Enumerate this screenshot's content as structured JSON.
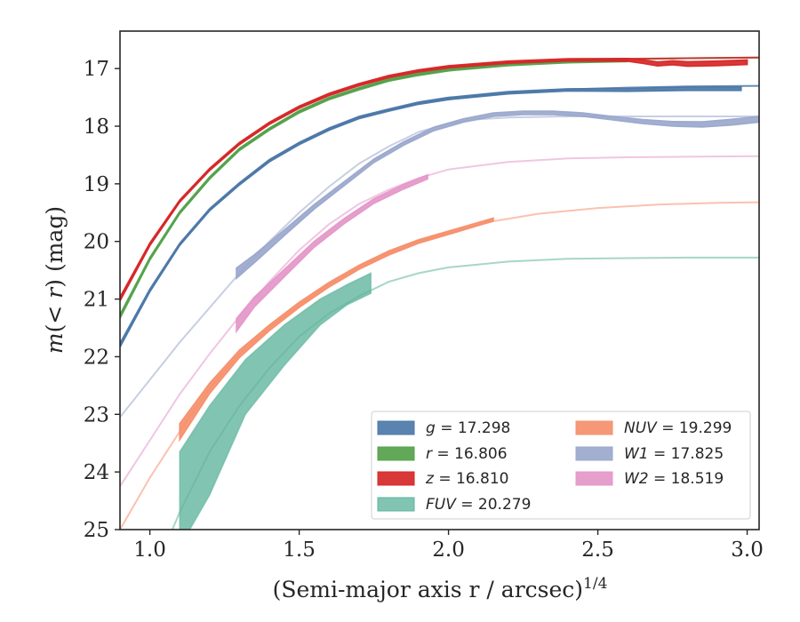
{
  "chart_data": {
    "type": "line",
    "xlabel": "(Semi-major axis r / arcsec)",
    "xlabel_exponent": "1/4",
    "ylabel": "m(< r) (mag)",
    "xlim": [
      0.9,
      3.04
    ],
    "ylim": [
      25.0,
      16.35
    ],
    "y_inverted": true,
    "x_ticks": [
      1.0,
      1.5,
      2.0,
      2.5,
      3.0
    ],
    "x_tick_labels": [
      "1.0",
      "1.5",
      "2.0",
      "2.5",
      "3.0"
    ],
    "y_ticks": [
      17,
      18,
      19,
      20,
      21,
      22,
      23,
      24,
      25
    ],
    "y_tick_labels": [
      "17",
      "18",
      "19",
      "20",
      "21",
      "22",
      "23",
      "24",
      "25"
    ],
    "legend_position": "lower-right",
    "series": [
      {
        "band": "g",
        "label_math": "g = 17.298",
        "color": "#4c78a8",
        "total_mag": 17.298,
        "model_x": [
          0.9,
          1.0,
          1.1,
          1.2,
          1.3,
          1.4,
          1.5,
          1.6,
          1.7,
          1.8,
          1.9,
          2.0,
          2.2,
          2.4,
          2.6,
          2.8,
          3.04
        ],
        "model_y": [
          21.8,
          20.85,
          20.05,
          19.45,
          19.0,
          18.6,
          18.3,
          18.05,
          17.85,
          17.72,
          17.6,
          17.52,
          17.42,
          17.36,
          17.33,
          17.31,
          17.3
        ],
        "data_x": [
          0.9,
          1.0,
          1.1,
          1.2,
          1.3,
          1.4,
          1.5,
          1.6,
          1.7,
          1.8,
          1.9,
          2.0,
          2.2,
          2.4,
          2.6,
          2.8,
          2.98
        ],
        "data_y": [
          21.8,
          20.85,
          20.05,
          19.45,
          19.0,
          18.6,
          18.3,
          18.05,
          17.85,
          17.72,
          17.6,
          17.52,
          17.42,
          17.37,
          17.37,
          17.35,
          17.35
        ],
        "data_width": [
          0.07,
          0.05,
          0.04,
          0.04,
          0.04,
          0.04,
          0.04,
          0.04,
          0.04,
          0.04,
          0.04,
          0.04,
          0.04,
          0.04,
          0.05,
          0.06,
          0.06
        ]
      },
      {
        "band": "r",
        "label_math": "r = 16.806",
        "color": "#54a24b",
        "total_mag": 16.806,
        "model_x": [
          0.9,
          1.0,
          1.1,
          1.2,
          1.3,
          1.4,
          1.5,
          1.6,
          1.7,
          1.8,
          1.9,
          2.0,
          2.2,
          2.4,
          2.6,
          2.8,
          3.04
        ],
        "model_y": [
          21.3,
          20.3,
          19.5,
          18.9,
          18.4,
          18.05,
          17.75,
          17.52,
          17.35,
          17.2,
          17.1,
          17.02,
          16.93,
          16.87,
          16.84,
          16.82,
          16.81
        ],
        "data_x": [
          0.9,
          1.0,
          1.1,
          1.2,
          1.3,
          1.4,
          1.5,
          1.6,
          1.7,
          1.8,
          1.9,
          2.0,
          2.2,
          2.4,
          2.6
        ],
        "data_y": [
          21.3,
          20.3,
          19.5,
          18.9,
          18.4,
          18.05,
          17.75,
          17.52,
          17.35,
          17.2,
          17.1,
          17.02,
          16.93,
          16.88,
          16.86
        ],
        "data_width": [
          0.07,
          0.05,
          0.04,
          0.04,
          0.04,
          0.04,
          0.04,
          0.04,
          0.04,
          0.04,
          0.04,
          0.04,
          0.04,
          0.04,
          0.04
        ]
      },
      {
        "band": "z",
        "label_math": "z = 16.810",
        "color": "#d62728",
        "total_mag": 16.81,
        "model_x": [
          0.9,
          1.0,
          1.1,
          1.2,
          1.3,
          1.4,
          1.5,
          1.6,
          1.7,
          1.8,
          1.9,
          2.0,
          2.2,
          2.4,
          2.6,
          2.8,
          3.04
        ],
        "model_y": [
          21.0,
          20.05,
          19.3,
          18.75,
          18.3,
          17.95,
          17.67,
          17.45,
          17.28,
          17.14,
          17.04,
          16.97,
          16.89,
          16.85,
          16.83,
          16.82,
          16.81
        ],
        "data_x": [
          0.9,
          1.0,
          1.1,
          1.2,
          1.3,
          1.4,
          1.5,
          1.6,
          1.7,
          1.8,
          1.9,
          2.0,
          2.2,
          2.4,
          2.6,
          2.65,
          2.7,
          2.75,
          2.8,
          2.9,
          3.0
        ],
        "data_y": [
          21.0,
          20.05,
          19.3,
          18.75,
          18.3,
          17.95,
          17.67,
          17.45,
          17.28,
          17.14,
          17.04,
          16.97,
          16.89,
          16.85,
          16.85,
          16.88,
          16.92,
          16.9,
          16.92,
          16.91,
          16.89
        ],
        "data_width": [
          0.07,
          0.05,
          0.04,
          0.04,
          0.04,
          0.04,
          0.04,
          0.04,
          0.04,
          0.04,
          0.04,
          0.04,
          0.04,
          0.04,
          0.05,
          0.06,
          0.07,
          0.07,
          0.08,
          0.08,
          0.08
        ]
      },
      {
        "band": "FUV",
        "label_math": "FUV = 20.279",
        "color": "#5fb49c",
        "total_mag": 20.279,
        "model_x": [
          1.05,
          1.1,
          1.2,
          1.3,
          1.4,
          1.5,
          1.6,
          1.7,
          1.8,
          1.9,
          2.0,
          2.2,
          2.4,
          2.6,
          2.8,
          3.04
        ],
        "model_y": [
          25.3,
          24.7,
          23.65,
          22.85,
          22.2,
          21.65,
          21.25,
          20.95,
          20.7,
          20.55,
          20.45,
          20.35,
          20.3,
          20.29,
          20.28,
          20.28
        ],
        "data_x": [
          1.1,
          1.2,
          1.32,
          1.45,
          1.57,
          1.66,
          1.74
        ],
        "data_lo": [
          25.3,
          24.4,
          23.0,
          22.15,
          21.45,
          21.1,
          20.9
        ],
        "data_hi": [
          23.65,
          22.85,
          22.05,
          21.45,
          21.0,
          20.75,
          20.55
        ]
      },
      {
        "band": "NUV",
        "label_math": "NUV = 19.299",
        "color": "#f58f6b",
        "total_mag": 19.299,
        "model_x": [
          0.9,
          1.0,
          1.1,
          1.2,
          1.3,
          1.4,
          1.5,
          1.6,
          1.7,
          1.8,
          1.9,
          2.0,
          2.15,
          2.3,
          2.5,
          2.7,
          2.9,
          3.04
        ],
        "model_y": [
          25.0,
          24.1,
          23.3,
          22.55,
          21.95,
          21.5,
          21.1,
          20.75,
          20.45,
          20.2,
          20.0,
          19.85,
          19.65,
          19.52,
          19.42,
          19.36,
          19.33,
          19.32
        ],
        "data_x": [
          1.1,
          1.2,
          1.3,
          1.4,
          1.5,
          1.6,
          1.7,
          1.8,
          1.9,
          2.0,
          2.15
        ],
        "data_y": [
          23.3,
          22.55,
          21.95,
          21.5,
          21.1,
          20.75,
          20.45,
          20.2,
          20.0,
          19.85,
          19.62
        ],
        "data_width": [
          0.28,
          0.18,
          0.13,
          0.1,
          0.09,
          0.08,
          0.07,
          0.07,
          0.06,
          0.06,
          0.05
        ]
      },
      {
        "band": "W1",
        "label_math": "W1 = 17.825",
        "color": "#9aa8cc",
        "total_mag": 17.825,
        "model_x": [
          0.9,
          1.0,
          1.1,
          1.2,
          1.3,
          1.4,
          1.5,
          1.6,
          1.7,
          1.8,
          1.9,
          2.0,
          2.1,
          2.2,
          2.4,
          2.6,
          2.8,
          3.04
        ],
        "model_y": [
          23.05,
          22.4,
          21.75,
          21.15,
          20.55,
          20.0,
          19.5,
          19.05,
          18.65,
          18.35,
          18.1,
          17.95,
          17.88,
          17.85,
          17.83,
          17.83,
          17.83,
          17.83
        ],
        "data_x": [
          1.29,
          1.35,
          1.45,
          1.55,
          1.65,
          1.75,
          1.85,
          1.95,
          2.05,
          2.15,
          2.25,
          2.35,
          2.45,
          2.55,
          2.65,
          2.75,
          2.85,
          2.95,
          3.04
        ],
        "data_y": [
          20.55,
          20.3,
          19.85,
          19.4,
          19.0,
          18.6,
          18.3,
          18.05,
          17.9,
          17.8,
          17.77,
          17.77,
          17.8,
          17.86,
          17.92,
          17.96,
          17.97,
          17.93,
          17.88
        ],
        "data_width": [
          0.18,
          0.14,
          0.1,
          0.08,
          0.07,
          0.06,
          0.06,
          0.06,
          0.06,
          0.06,
          0.06,
          0.06,
          0.06,
          0.06,
          0.07,
          0.08,
          0.09,
          0.1,
          0.1
        ]
      },
      {
        "band": "W2",
        "label_math": "W2 = 18.519",
        "color": "#e497c8",
        "total_mag": 18.519,
        "model_x": [
          0.9,
          1.0,
          1.1,
          1.2,
          1.3,
          1.4,
          1.5,
          1.6,
          1.7,
          1.8,
          1.9,
          2.0,
          2.2,
          2.4,
          2.6,
          2.8,
          3.04
        ],
        "model_y": [
          24.25,
          23.45,
          22.65,
          21.95,
          21.3,
          20.7,
          20.15,
          19.7,
          19.35,
          19.1,
          18.9,
          18.75,
          18.62,
          18.56,
          18.54,
          18.53,
          18.52
        ],
        "data_x": [
          1.29,
          1.35,
          1.45,
          1.55,
          1.65,
          1.75,
          1.85,
          1.93
        ],
        "data_y": [
          21.45,
          21.05,
          20.55,
          20.05,
          19.65,
          19.3,
          19.05,
          18.88
        ],
        "data_width": [
          0.22,
          0.17,
          0.13,
          0.1,
          0.09,
          0.08,
          0.08,
          0.07
        ]
      }
    ]
  }
}
